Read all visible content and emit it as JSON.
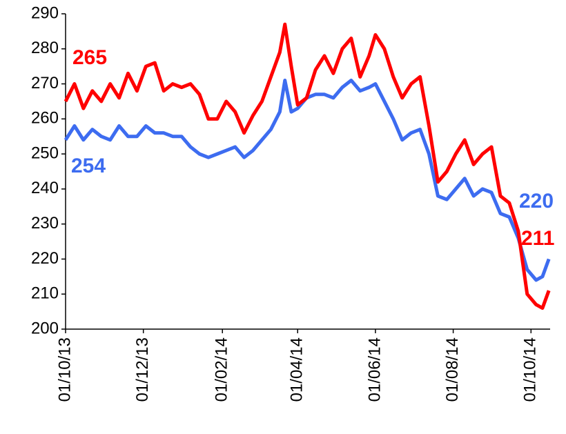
{
  "chart_data": {
    "type": "line",
    "x": [
      "2013-10-01",
      "2013-10-08",
      "2013-10-15",
      "2013-10-22",
      "2013-10-29",
      "2013-11-05",
      "2013-11-12",
      "2013-11-19",
      "2013-11-26",
      "2013-12-03",
      "2013-12-10",
      "2013-12-17",
      "2013-12-24",
      "2013-12-31",
      "2014-01-07",
      "2014-01-14",
      "2014-01-21",
      "2014-01-28",
      "2014-02-04",
      "2014-02-11",
      "2014-02-18",
      "2014-02-25",
      "2014-03-04",
      "2014-03-11",
      "2014-03-18",
      "2014-03-22",
      "2014-03-27",
      "2014-04-01",
      "2014-04-08",
      "2014-04-15",
      "2014-04-22",
      "2014-04-29",
      "2014-05-06",
      "2014-05-13",
      "2014-05-20",
      "2014-05-27",
      "2014-06-01",
      "2014-06-08",
      "2014-06-15",
      "2014-06-22",
      "2014-06-29",
      "2014-07-06",
      "2014-07-13",
      "2014-07-20",
      "2014-07-27",
      "2014-08-03",
      "2014-08-10",
      "2014-08-17",
      "2014-08-24",
      "2014-08-31",
      "2014-09-07",
      "2014-09-14",
      "2014-09-21",
      "2014-09-28",
      "2014-10-05",
      "2014-10-10",
      "2014-10-15"
    ],
    "series": [
      {
        "color": "#ff0000",
        "values": [
          265,
          270,
          263,
          268,
          265,
          270,
          266,
          273,
          268,
          275,
          276,
          268,
          270,
          269,
          270,
          267,
          260,
          260,
          265,
          262,
          256,
          261,
          265,
          272,
          279,
          287,
          275,
          264,
          266,
          274,
          278,
          273,
          280,
          283,
          272,
          278,
          284,
          280,
          272,
          266,
          270,
          272,
          258,
          242,
          245,
          250,
          254,
          247,
          250,
          252,
          238,
          236,
          228,
          210,
          207,
          206,
          211
        ]
      },
      {
        "color": "#3d6cf0",
        "values": [
          254,
          258,
          254,
          257,
          255,
          254,
          258,
          255,
          255,
          258,
          256,
          256,
          255,
          255,
          252,
          250,
          249,
          250,
          251,
          252,
          249,
          251,
          254,
          257,
          262,
          271,
          262,
          263,
          266,
          267,
          267,
          266,
          269,
          271,
          268,
          269,
          270,
          265,
          260,
          254,
          256,
          257,
          250,
          238,
          237,
          240,
          243,
          238,
          240,
          239,
          233,
          232,
          226,
          217,
          214,
          215,
          220
        ]
      }
    ],
    "annotations": [
      {
        "text": "265",
        "color": "#ff0000"
      },
      {
        "text": "254",
        "color": "#3d6cf0"
      },
      {
        "text": "220",
        "color": "#3d6cf0"
      },
      {
        "text": "211",
        "color": "#ff0000"
      }
    ],
    "xlim": [
      "2013-10-01",
      "2014-10-16"
    ],
    "xticks": [
      {
        "value": "2013-10-01",
        "label": "01/10/13"
      },
      {
        "value": "2013-12-01",
        "label": "01/12/13"
      },
      {
        "value": "2014-02-01",
        "label": "01/02/14"
      },
      {
        "value": "2014-04-01",
        "label": "01/04/14"
      },
      {
        "value": "2014-06-01",
        "label": "01/06/14"
      },
      {
        "value": "2014-08-01",
        "label": "01/08/14"
      },
      {
        "value": "2014-10-01",
        "label": "01/10/14"
      }
    ],
    "ylim": [
      200,
      290
    ],
    "yticks": [
      200,
      210,
      220,
      230,
      240,
      250,
      260,
      270,
      280,
      290
    ]
  }
}
